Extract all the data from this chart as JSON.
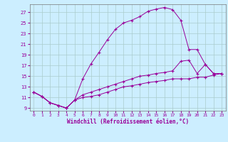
{
  "xlabel": "Windchill (Refroidissement éolien,°C)",
  "bg_color": "#cceeff",
  "line_color": "#990099",
  "grid_color": "#aacccc",
  "xlim": [
    -0.5,
    23.5
  ],
  "ylim": [
    8.5,
    28.5
  ],
  "xticks": [
    0,
    1,
    2,
    3,
    4,
    5,
    6,
    7,
    8,
    9,
    10,
    11,
    12,
    13,
    14,
    15,
    16,
    17,
    18,
    19,
    20,
    21,
    22,
    23
  ],
  "yticks": [
    9,
    11,
    13,
    15,
    17,
    19,
    21,
    23,
    25,
    27
  ],
  "line1_x": [
    0,
    1,
    2,
    3,
    4,
    5,
    6,
    7,
    8,
    9,
    10,
    11,
    12,
    13,
    14,
    15,
    16,
    17,
    18,
    19,
    20,
    21,
    22,
    23
  ],
  "line1_y": [
    12.0,
    11.2,
    10.0,
    9.5,
    9.0,
    10.5,
    14.5,
    17.3,
    19.5,
    21.8,
    23.8,
    25.0,
    25.5,
    26.2,
    27.2,
    27.6,
    27.9,
    27.5,
    25.5,
    20.0,
    20.0,
    17.2,
    15.5,
    15.5
  ],
  "line2_x": [
    0,
    1,
    2,
    3,
    4,
    5,
    6,
    7,
    8,
    9,
    10,
    11,
    12,
    13,
    14,
    15,
    16,
    17,
    18,
    19,
    20,
    21,
    22,
    23
  ],
  "line2_y": [
    12.0,
    11.2,
    10.0,
    9.5,
    9.0,
    10.5,
    11.5,
    12.0,
    12.5,
    13.0,
    13.5,
    14.0,
    14.5,
    15.0,
    15.2,
    15.5,
    15.7,
    16.0,
    17.8,
    18.0,
    15.5,
    17.2,
    15.5,
    15.5
  ],
  "line3_x": [
    0,
    1,
    2,
    3,
    4,
    5,
    6,
    7,
    8,
    9,
    10,
    11,
    12,
    13,
    14,
    15,
    16,
    17,
    18,
    19,
    20,
    21,
    22,
    23
  ],
  "line3_y": [
    12.0,
    11.2,
    10.0,
    9.5,
    9.0,
    10.5,
    11.0,
    11.2,
    11.5,
    12.0,
    12.5,
    13.0,
    13.2,
    13.5,
    13.8,
    14.0,
    14.2,
    14.5,
    14.5,
    14.5,
    14.8,
    14.8,
    15.2,
    15.5
  ]
}
